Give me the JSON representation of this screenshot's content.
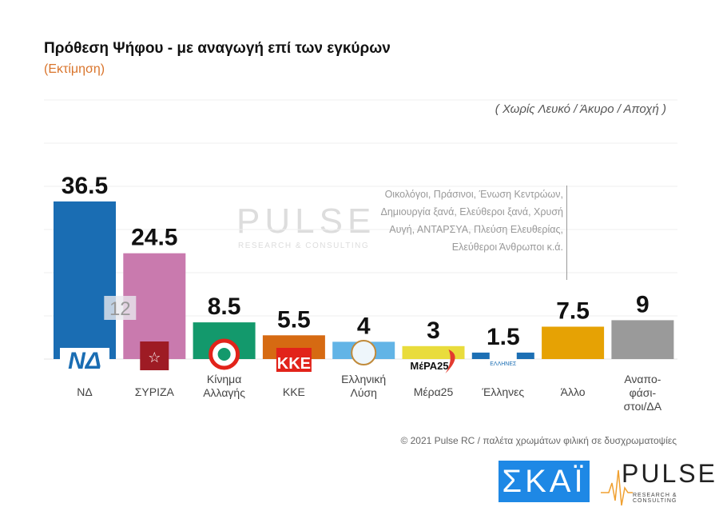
{
  "header": {
    "title": "Πρόθεση Ψήφου - με αναγωγή επί των εγκύρων",
    "subtitle": "(Εκτίμηση)",
    "note": "( Χωρίς Λευκό / Άκυρο / Αποχή )"
  },
  "chart_data": {
    "type": "bar",
    "title": "Πρόθεση Ψήφου - με αναγωγή επί των εγκύρων",
    "subtitle": "(Εκτίμηση)",
    "categories": [
      "ΝΔ",
      "ΣΥΡΙΖΑ",
      "Κίνημα Αλλαγής",
      "ΚΚΕ",
      "Ελληνική Λύση",
      "Μέρα25",
      "Έλληνες",
      "Άλλο",
      "Αναπο-φάσι-στοι/ΔΑ"
    ],
    "label_lines": [
      [
        "ΝΔ"
      ],
      [
        "ΣΥΡΙΖΑ"
      ],
      [
        "Κίνημα",
        "Αλλαγής"
      ],
      [
        "ΚΚΕ"
      ],
      [
        "Ελληνική",
        "Λύση"
      ],
      [
        "Μέρα25"
      ],
      [
        "Έλληνες"
      ],
      [
        "Άλλο"
      ],
      [
        "Αναπο-",
        "φάσι-",
        "στοι/ΔΑ"
      ]
    ],
    "values": [
      36.5,
      24.5,
      8.5,
      5.5,
      4,
      3,
      1.5,
      7.5,
      9
    ],
    "value_labels": [
      "36.5",
      "24.5",
      "8.5",
      "5.5",
      "4",
      "3",
      "1.5",
      "7.5",
      "9"
    ],
    "colors": [
      "#1a6db3",
      "#c97aae",
      "#13996c",
      "#d66a12",
      "#62b4e6",
      "#e9dc3c",
      "#1c6fb4",
      "#e6a204",
      "#9a9a9a"
    ],
    "ylim": [
      0,
      60
    ],
    "grid": true,
    "annotations": [
      {
        "category": "ΣΥΡΙΖΑ",
        "text": "12"
      },
      {
        "category": "Άλλο",
        "text": "Οικολόγοι, Πράσινοι, Ένωση Κεντρώων, Δημιουργία ξανά, Ελεύθεροι ξανά, Χρυσή Αυγή, ΑΝΤΑΡΣΥΑ, Πλεύση Ελευθερίας, Ελεύθεροι Άνθρωποι  κ.ά."
      }
    ]
  },
  "callout_lines": [
    "Οικολόγοι, Πράσινοι, Ένωση Κεντρώων,",
    "Δημιουργία ξανά, Ελεύθεροι ξανά, Χρυσή",
    "Αυγή, ΑΝΤΑΡΣΥΑ, Πλεύση Ελευθερίας,",
    "Ελεύθεροι Άνθρωποι  κ.ά."
  ],
  "footer": "© 2021 Pulse RC   /   παλέτα χρωμάτων φιλική σε δυσχρωματοψίες",
  "logos": {
    "skai": "ΣΚΑΪ",
    "pulse": "PULSE",
    "pulse_tagline": "RESEARCH & CONSULTING",
    "party_logos": [
      "ΝΔ",
      "ΣΥΡΙΖΑ",
      "ΚΙΝΑΛ",
      "ΚΚΕ",
      "Ελληνική Λύση",
      "ΜέΡΑ25",
      "ΕΛΛΗΝΕΣ"
    ]
  }
}
